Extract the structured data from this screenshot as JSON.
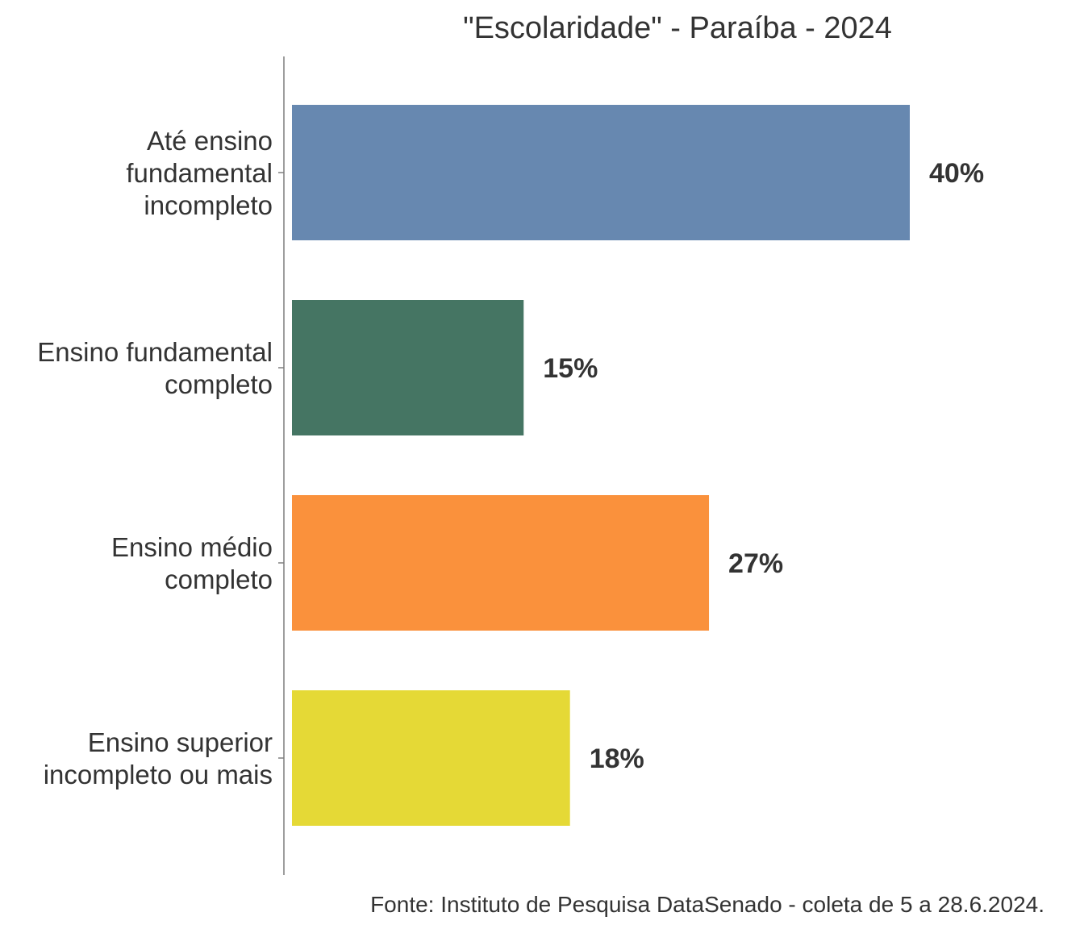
{
  "chart_data": {
    "type": "bar",
    "orientation": "horizontal",
    "title": "\"Escolaridade\" - Paraíba - 2024",
    "categories": [
      [
        "Até ensino",
        "fundamental",
        "incompleto"
      ],
      [
        "Ensino fundamental",
        "completo"
      ],
      [
        "Ensino médio",
        "completo"
      ],
      [
        "Ensino superior",
        "incompleto ou mais"
      ]
    ],
    "values": [
      40,
      15,
      27,
      18
    ],
    "value_labels": [
      "40%",
      "15%",
      "27%",
      "18%"
    ],
    "colors": [
      "#6788b0",
      "#457563",
      "#fa913c",
      "#e5d936"
    ],
    "xlim": [
      0,
      40
    ],
    "grid": false,
    "legend": "none",
    "caption": "Fonte: Instituto de Pesquisa DataSenado - coleta de 5 a 28.6.2024."
  }
}
